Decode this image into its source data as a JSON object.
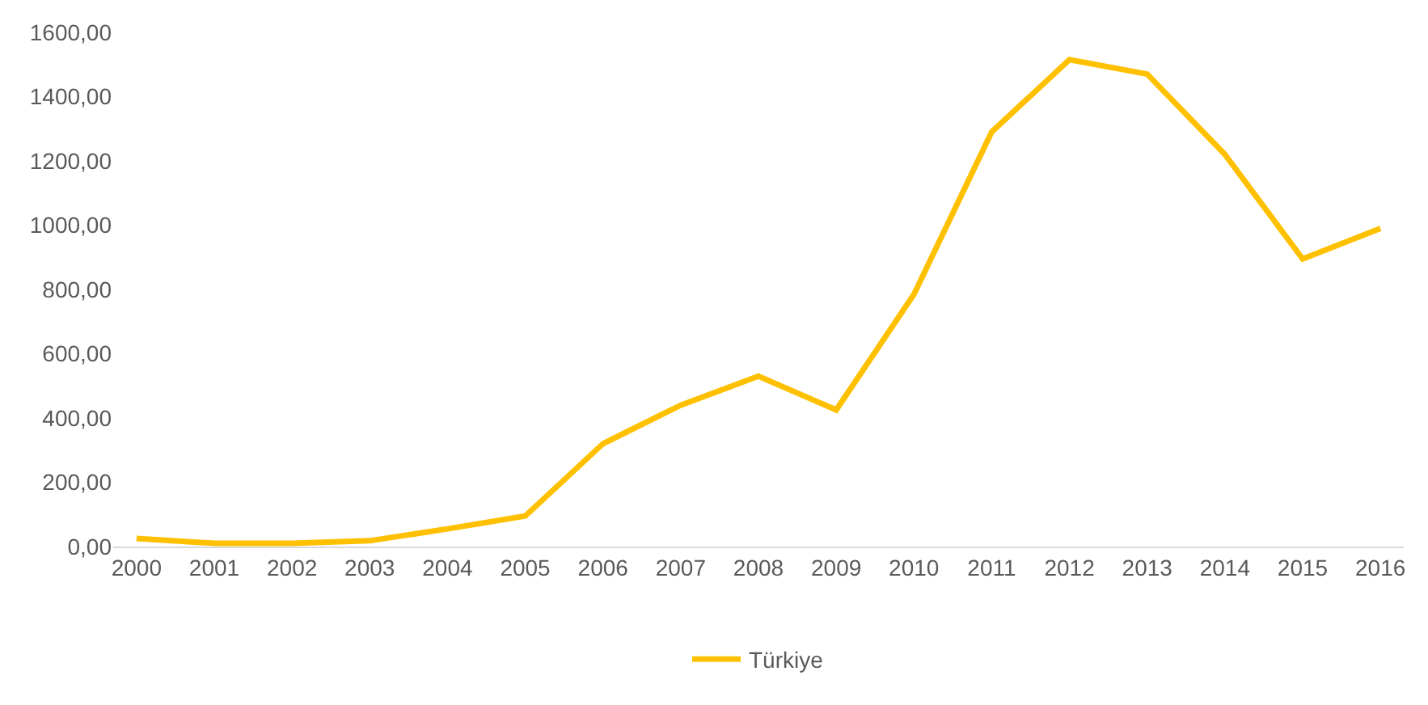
{
  "chart_data": {
    "type": "line",
    "categories": [
      "2000",
      "2001",
      "2002",
      "2003",
      "2004",
      "2005",
      "2006",
      "2007",
      "2008",
      "2009",
      "2010",
      "2011",
      "2012",
      "2013",
      "2014",
      "2015",
      "2016"
    ],
    "series": [
      {
        "name": "Türkiye",
        "color": "#ffc000",
        "values": [
          25,
          10,
          10,
          18,
          55,
          95,
          320,
          440,
          530,
          425,
          785,
          1290,
          1515,
          1470,
          1220,
          895,
          990
        ]
      }
    ],
    "ylim": [
      0,
      1600
    ],
    "yticks": [
      {
        "value": 0,
        "label": "0,00"
      },
      {
        "value": 200,
        "label": "200,00"
      },
      {
        "value": 400,
        "label": "400,00"
      },
      {
        "value": 600,
        "label": "600,00"
      },
      {
        "value": 800,
        "label": "800,00"
      },
      {
        "value": 1000,
        "label": "1000,00"
      },
      {
        "value": 1200,
        "label": "1200,00"
      },
      {
        "value": 1400,
        "label": "1400,00"
      },
      {
        "value": 1600,
        "label": "1600,00"
      }
    ],
    "grid": false,
    "legend": "bottom",
    "marker": "none",
    "line_style": "solid"
  }
}
